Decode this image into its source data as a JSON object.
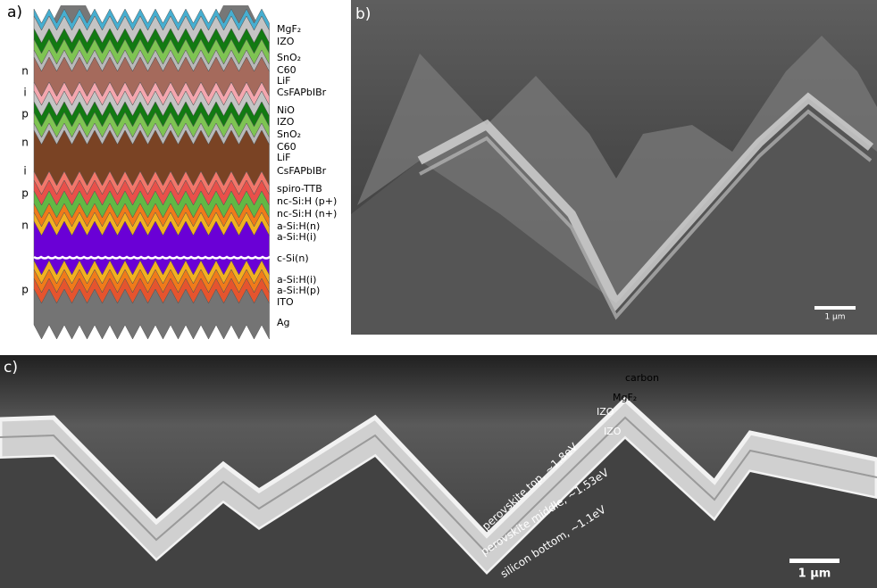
{
  "panels": {
    "a": {
      "label": "a)",
      "layers": [
        {
          "label": "MgF₂",
          "color": "#46aed0"
        },
        {
          "label": "IZO",
          "color": "#c4c4c4"
        },
        {
          "label": "SnO₂",
          "color": "#127a12"
        },
        {
          "label": "C60",
          "color": "#7ec452"
        },
        {
          "label": "LiF",
          "color": "#b8b8b8"
        },
        {
          "label": "CsFAPbIBr",
          "color": "#a56a5c"
        },
        {
          "label": "NiO",
          "color": "#f4a6ae"
        },
        {
          "label": "IZO",
          "color": "#c4c4c4"
        },
        {
          "label": "SnO₂",
          "color": "#127a12"
        },
        {
          "label": "C60",
          "color": "#7ec452"
        },
        {
          "label": "LiF",
          "color": "#b8b8b8"
        },
        {
          "label": "CsFAPbIBr",
          "color": "#7a4324"
        },
        {
          "label": "spiro-TTB",
          "color": "#f2766a"
        },
        {
          "label": "nc-Si:H (p+)",
          "color": "#e8504a"
        },
        {
          "label": "nc-Si:H (n+)",
          "color": "#62b844"
        },
        {
          "label": "a-Si:H(n)",
          "color": "#f07a1a"
        },
        {
          "label": "a-Si:H(i)",
          "color": "#f2b020"
        },
        {
          "label": "c-Si(n)",
          "color": "#6a00d6"
        },
        {
          "label": "a-Si:H(i)",
          "color": "#f2b020"
        },
        {
          "label": "a-Si:H(p)",
          "color": "#f07a1a"
        },
        {
          "label": "ITO",
          "color": "#e5542e"
        },
        {
          "label": "Ag",
          "color": "#747474"
        }
      ],
      "doping": [
        "n",
        "i",
        "p",
        "n",
        "i",
        "p",
        "n",
        "p"
      ]
    },
    "b": {
      "label": "b)",
      "scale_bar": "1 µm"
    },
    "c": {
      "label": "c)",
      "scale_bar": "1 µm",
      "annotations": [
        "carbon",
        "MgF₂",
        "IZO",
        "IZO",
        "perovskite top, ~1.8eV",
        "perovskite middle, ~1.53eV",
        "silicon bottom, ~1.1eV"
      ]
    }
  }
}
